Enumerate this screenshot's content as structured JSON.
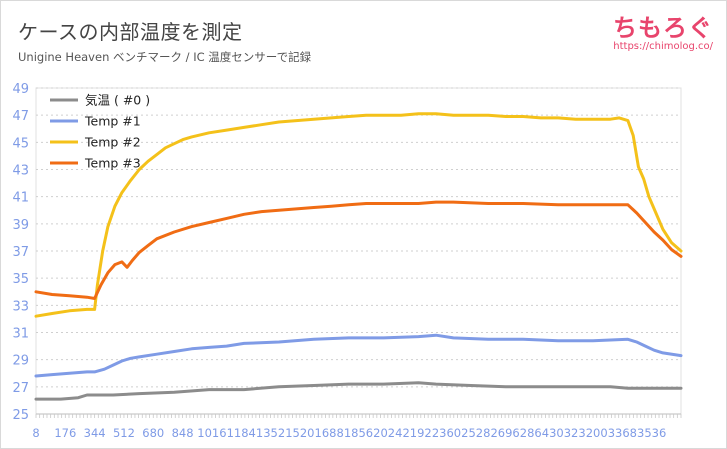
{
  "header": {
    "title": "ケースの内部温度を測定",
    "subtitle": "Unigine Heaven ベンチマーク / IC 温度センサーで記録"
  },
  "brand": {
    "logo": "ちもろぐ",
    "url": "https://chimolog.co/"
  },
  "chart_data": {
    "type": "line",
    "title": "ケースの内部温度を測定",
    "subtitle": "Unigine Heaven ベンチマーク / IC 温度センサーで記録",
    "xlabel": "",
    "ylabel": "",
    "xlim": [
      8,
      3704
    ],
    "ylim": [
      25,
      49
    ],
    "x_ticks": [
      8,
      176,
      344,
      512,
      680,
      848,
      1016,
      1184,
      1352,
      1520,
      1688,
      1856,
      2024,
      2192,
      2360,
      2528,
      2696,
      2864,
      3032,
      3200,
      3368,
      3536
    ],
    "y_ticks": [
      25,
      27,
      29,
      31,
      33,
      35,
      37,
      39,
      41,
      43,
      45,
      47,
      49
    ],
    "grid": true,
    "legend_position": "top-left",
    "series": [
      {
        "name": "気温 ( #0 )",
        "color": "#8c8c8c",
        "x": [
          8,
          150,
          250,
          300,
          344,
          450,
          600,
          800,
          1000,
          1200,
          1400,
          1600,
          1800,
          2000,
          2200,
          2300,
          2500,
          2700,
          2900,
          3100,
          3300,
          3400,
          3500,
          3600,
          3704
        ],
        "y": [
          26.1,
          26.1,
          26.2,
          26.4,
          26.4,
          26.4,
          26.5,
          26.6,
          26.8,
          26.8,
          27.0,
          27.1,
          27.2,
          27.2,
          27.3,
          27.2,
          27.1,
          27.0,
          27.0,
          27.0,
          27.0,
          26.9,
          26.9,
          26.9,
          26.9
        ]
      },
      {
        "name": "Temp #1",
        "color": "#7f9be6",
        "x": [
          8,
          100,
          200,
          300,
          344,
          400,
          450,
          500,
          550,
          600,
          700,
          800,
          900,
          1000,
          1100,
          1200,
          1400,
          1600,
          1800,
          2000,
          2200,
          2300,
          2400,
          2600,
          2800,
          3000,
          3200,
          3400,
          3450,
          3500,
          3550,
          3600,
          3704
        ],
        "y": [
          27.8,
          27.9,
          28.0,
          28.1,
          28.1,
          28.3,
          28.6,
          28.9,
          29.1,
          29.2,
          29.4,
          29.6,
          29.8,
          29.9,
          30.0,
          30.2,
          30.3,
          30.5,
          30.6,
          30.6,
          30.7,
          30.8,
          30.6,
          30.5,
          30.5,
          30.4,
          30.4,
          30.5,
          30.3,
          30.0,
          29.7,
          29.5,
          29.3
        ]
      },
      {
        "name": "Temp #2",
        "color": "#f4c11a",
        "x": [
          8,
          100,
          200,
          300,
          344,
          360,
          390,
          420,
          460,
          500,
          550,
          600,
          650,
          700,
          750,
          800,
          850,
          900,
          1000,
          1100,
          1200,
          1300,
          1400,
          1500,
          1600,
          1700,
          1800,
          1900,
          2000,
          2100,
          2200,
          2300,
          2400,
          2500,
          2600,
          2700,
          2800,
          2900,
          3000,
          3100,
          3200,
          3300,
          3350,
          3400,
          3430,
          3460,
          3490,
          3520,
          3560,
          3600,
          3650,
          3704
        ],
        "y": [
          32.2,
          32.4,
          32.6,
          32.7,
          32.7,
          34.5,
          37.0,
          38.8,
          40.3,
          41.3,
          42.2,
          43.0,
          43.6,
          44.1,
          44.6,
          44.9,
          45.2,
          45.4,
          45.7,
          45.9,
          46.1,
          46.3,
          46.5,
          46.6,
          46.7,
          46.8,
          46.9,
          47.0,
          47.0,
          47.0,
          47.1,
          47.1,
          47.0,
          47.0,
          47.0,
          46.9,
          46.9,
          46.8,
          46.8,
          46.7,
          46.7,
          46.7,
          46.8,
          46.6,
          45.5,
          43.2,
          42.3,
          41.0,
          39.8,
          38.6,
          37.6,
          37.0
        ]
      },
      {
        "name": "Temp #3",
        "color": "#f06c14",
        "x": [
          8,
          100,
          200,
          300,
          344,
          380,
          420,
          460,
          500,
          530,
          560,
          600,
          650,
          700,
          800,
          900,
          1000,
          1100,
          1200,
          1300,
          1400,
          1500,
          1600,
          1700,
          1800,
          1900,
          2000,
          2100,
          2200,
          2300,
          2400,
          2600,
          2800,
          3000,
          3200,
          3300,
          3400,
          3450,
          3500,
          3550,
          3600,
          3650,
          3704
        ],
        "y": [
          34.0,
          33.8,
          33.7,
          33.6,
          33.5,
          34.5,
          35.4,
          36.0,
          36.2,
          35.8,
          36.3,
          36.9,
          37.4,
          37.9,
          38.4,
          38.8,
          39.1,
          39.4,
          39.7,
          39.9,
          40.0,
          40.1,
          40.2,
          40.3,
          40.4,
          40.5,
          40.5,
          40.5,
          40.5,
          40.6,
          40.6,
          40.5,
          40.5,
          40.4,
          40.4,
          40.4,
          40.4,
          39.8,
          39.1,
          38.4,
          37.8,
          37.1,
          36.6
        ]
      }
    ]
  }
}
